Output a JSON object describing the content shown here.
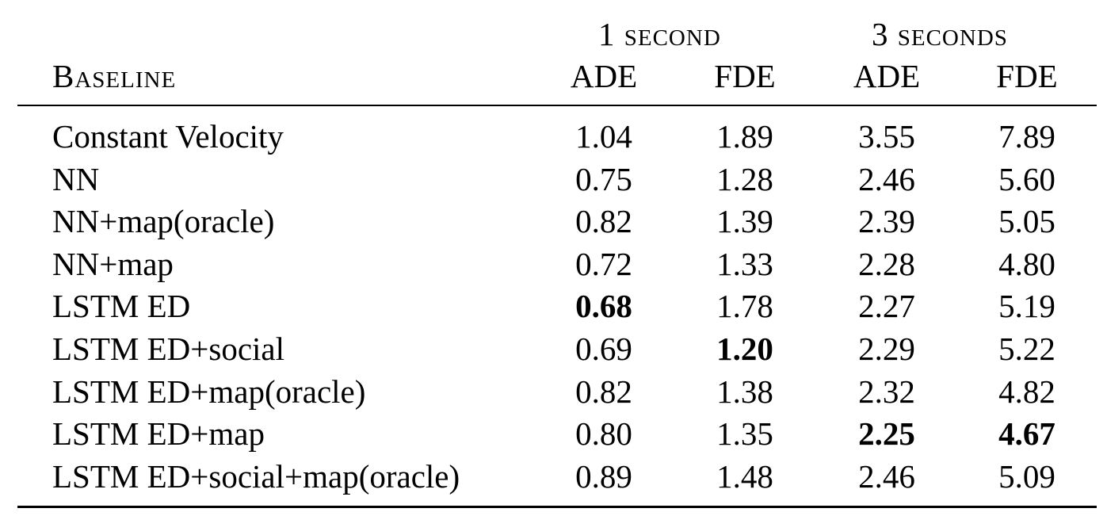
{
  "header": {
    "group1": "1 second",
    "group2": "3 seconds",
    "baseline": "Baseline",
    "ade1": "ADE",
    "fde1": "FDE",
    "ade2": "ADE",
    "fde2": "FDE"
  },
  "rows": [
    {
      "name": "Constant Velocity",
      "ade1": "1.04",
      "fde1": "1.89",
      "ade3": "3.55",
      "fde3": "7.89",
      "bold": []
    },
    {
      "name": "NN",
      "ade1": "0.75",
      "fde1": "1.28",
      "ade3": "2.46",
      "fde3": "5.60",
      "bold": []
    },
    {
      "name": "NN+map(oracle)",
      "ade1": "0.82",
      "fde1": "1.39",
      "ade3": "2.39",
      "fde3": "5.05",
      "bold": []
    },
    {
      "name": "NN+map",
      "ade1": "0.72",
      "fde1": "1.33",
      "ade3": "2.28",
      "fde3": "4.80",
      "bold": []
    },
    {
      "name": "LSTM ED",
      "ade1": "0.68",
      "fde1": "1.78",
      "ade3": "2.27",
      "fde3": "5.19",
      "bold": [
        "ade1"
      ]
    },
    {
      "name": "LSTM ED+social",
      "ade1": "0.69",
      "fde1": "1.20",
      "ade3": "2.29",
      "fde3": "5.22",
      "bold": [
        "fde1"
      ]
    },
    {
      "name": "LSTM ED+map(oracle)",
      "ade1": "0.82",
      "fde1": "1.38",
      "ade3": "2.32",
      "fde3": "4.82",
      "bold": []
    },
    {
      "name": "LSTM ED+map",
      "ade1": "0.80",
      "fde1": "1.35",
      "ade3": "2.25",
      "fde3": "4.67",
      "bold": [
        "ade3",
        "fde3"
      ]
    },
    {
      "name": "LSTM ED+social+map(oracle)",
      "ade1": "0.89",
      "fde1": "1.48",
      "ade3": "2.46",
      "fde3": "5.09",
      "bold": []
    }
  ]
}
